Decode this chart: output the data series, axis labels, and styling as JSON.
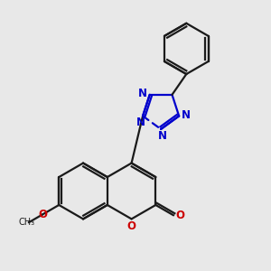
{
  "bg": "#e8e8e8",
  "bc": "#1a1a1a",
  "nc": "#0000cc",
  "oc": "#cc0000",
  "lw": 1.6,
  "fs": 8.5,
  "dg": 0.09,
  "xlim": [
    0.5,
    9.0
  ],
  "ylim": [
    1.0,
    9.5
  ]
}
